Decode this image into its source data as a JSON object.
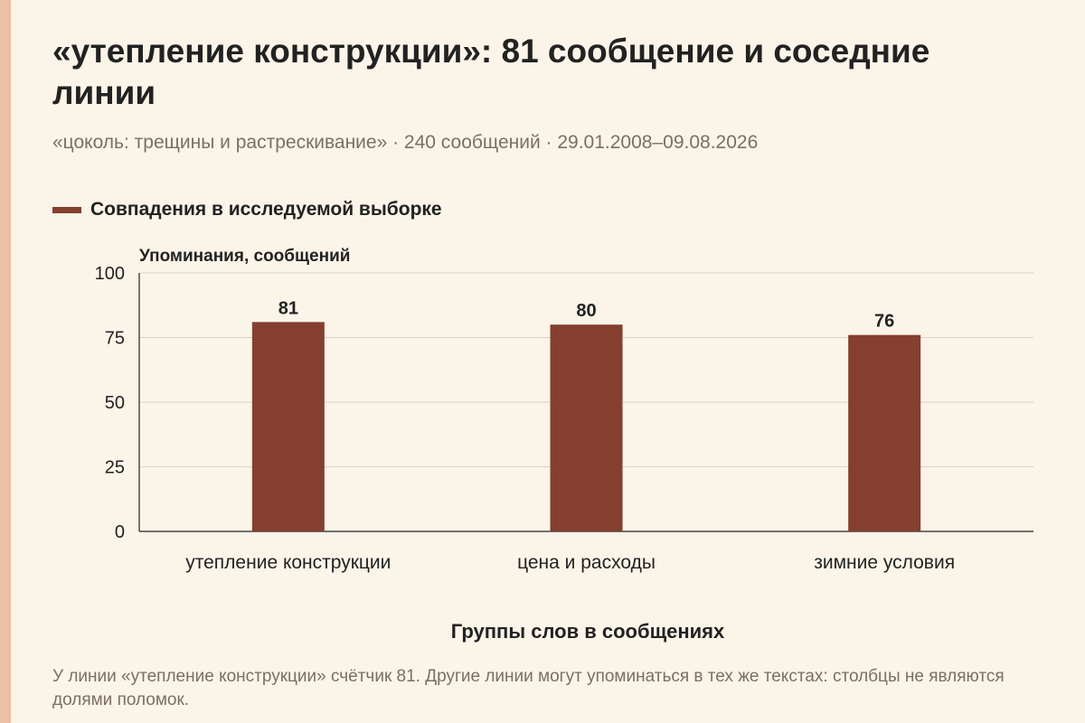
{
  "header": {
    "title": "«утепление конструкции»: 81 сообщение и соседние линии",
    "subtitle": "«цоколь: трещины и растрескивание» · 240 сообщений · 29.01.2008–09.08.2026"
  },
  "legend": {
    "label": "Совпадения в исследуемой выборке"
  },
  "footnote": "У линии «утепление конструкции» счётчик 81. Другие линии могут упоминаться в тех же текстах: столбцы не являются долями поломок.",
  "colors": {
    "bar": "#843f2f",
    "grid": "#d9d2c8",
    "axis": "#222222",
    "background": "#fbf4e8"
  },
  "chart_data": {
    "type": "bar",
    "title": "«утепление конструкции»: 81 сообщение и соседние линии",
    "ylabel": "Упоминания, сообщений",
    "xlabel": "Группы слов в сообщениях",
    "categories": [
      "утепление конструкции",
      "цена и расходы",
      "зимние условия"
    ],
    "series": [
      {
        "name": "Совпадения в исследуемой выборке",
        "values": [
          81,
          80,
          76
        ]
      }
    ],
    "ylim": [
      0,
      100
    ],
    "yticks": [
      0,
      25,
      50,
      75,
      100
    ],
    "grid": true,
    "legend_position": "top-left"
  }
}
